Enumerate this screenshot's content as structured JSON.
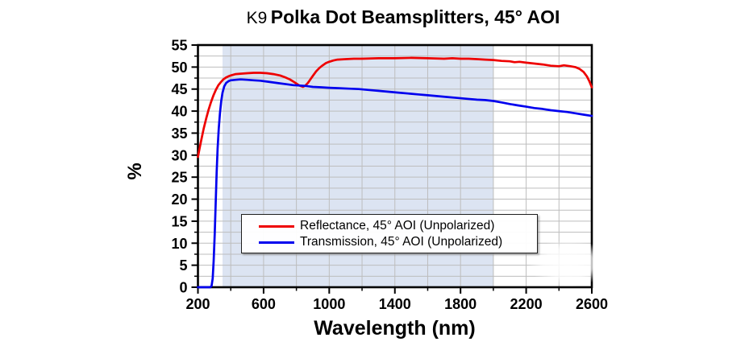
{
  "chart_data": {
    "type": "line",
    "title": "K9 Polka Dot Beamsplitters, 45° AOI",
    "title_prefix": "K9",
    "title_main": "Polka Dot Beamsplitters, 45° AOI",
    "xlabel": "Wavelength (nm)",
    "ylabel": "%",
    "xlim": [
      200,
      2600
    ],
    "ylim": [
      0,
      55
    ],
    "x_major_ticks": [
      200,
      600,
      1000,
      1400,
      1800,
      2200,
      2600
    ],
    "x_minor_step": 200,
    "y_major_step": 5,
    "y_minor_step": 2.5,
    "grid": true,
    "legend_position": "lower-center-inside",
    "highlight_band_nm": [
      350,
      2000
    ],
    "band_color": "#dce4f2",
    "grid_color": "#bdbdbd",
    "axis_color": "#000000",
    "series": [
      {
        "name": "Reflectance, 45° AOI (Unpolarized)",
        "color": "#ee0000",
        "points": [
          [
            200,
            29.6
          ],
          [
            210,
            31.5
          ],
          [
            220,
            33.4
          ],
          [
            235,
            36.0
          ],
          [
            250,
            38.3
          ],
          [
            265,
            40.3
          ],
          [
            280,
            42.1
          ],
          [
            295,
            43.6
          ],
          [
            310,
            44.9
          ],
          [
            325,
            45.9
          ],
          [
            340,
            46.6
          ],
          [
            355,
            47.2
          ],
          [
            370,
            47.6
          ],
          [
            385,
            47.9
          ],
          [
            400,
            48.1
          ],
          [
            430,
            48.4
          ],
          [
            460,
            48.5
          ],
          [
            500,
            48.6
          ],
          [
            540,
            48.7
          ],
          [
            580,
            48.7
          ],
          [
            620,
            48.6
          ],
          [
            660,
            48.4
          ],
          [
            700,
            48.1
          ],
          [
            730,
            47.7
          ],
          [
            760,
            47.2
          ],
          [
            790,
            46.5
          ],
          [
            810,
            46.0
          ],
          [
            825,
            45.7
          ],
          [
            840,
            45.5
          ],
          [
            855,
            45.8
          ],
          [
            870,
            46.4
          ],
          [
            885,
            47.2
          ],
          [
            900,
            48.0
          ],
          [
            920,
            49.0
          ],
          [
            940,
            49.8
          ],
          [
            960,
            50.4
          ],
          [
            980,
            50.9
          ],
          [
            1000,
            51.2
          ],
          [
            1025,
            51.5
          ],
          [
            1050,
            51.7
          ],
          [
            1100,
            51.8
          ],
          [
            1150,
            51.9
          ],
          [
            1200,
            51.9
          ],
          [
            1300,
            52.0
          ],
          [
            1400,
            52.0
          ],
          [
            1500,
            52.1
          ],
          [
            1600,
            52.0
          ],
          [
            1700,
            51.9
          ],
          [
            1750,
            52.0
          ],
          [
            1800,
            51.9
          ],
          [
            1850,
            51.9
          ],
          [
            1900,
            51.8
          ],
          [
            1950,
            51.7
          ],
          [
            2000,
            51.6
          ],
          [
            2050,
            51.4
          ],
          [
            2100,
            51.3
          ],
          [
            2130,
            51.1
          ],
          [
            2160,
            51.2
          ],
          [
            2200,
            51.0
          ],
          [
            2250,
            50.8
          ],
          [
            2300,
            50.6
          ],
          [
            2350,
            50.3
          ],
          [
            2400,
            50.2
          ],
          [
            2430,
            50.4
          ],
          [
            2470,
            50.2
          ],
          [
            2500,
            50.0
          ],
          [
            2525,
            49.6
          ],
          [
            2550,
            48.9
          ],
          [
            2570,
            47.9
          ],
          [
            2585,
            46.8
          ],
          [
            2600,
            45.4
          ]
        ]
      },
      {
        "name": "Transmission, 45° AOI (Unpolarized)",
        "color": "#0000ee",
        "points": [
          [
            200,
            0
          ],
          [
            275,
            0
          ],
          [
            283,
            0.3
          ],
          [
            290,
            2
          ],
          [
            296,
            6
          ],
          [
            302,
            12
          ],
          [
            308,
            19
          ],
          [
            314,
            26
          ],
          [
            320,
            31.5
          ],
          [
            327,
            36
          ],
          [
            334,
            39.5
          ],
          [
            342,
            42.3
          ],
          [
            350,
            44.2
          ],
          [
            360,
            45.6
          ],
          [
            372,
            46.4
          ],
          [
            386,
            46.8
          ],
          [
            400,
            47.0
          ],
          [
            430,
            47.1
          ],
          [
            460,
            47.2
          ],
          [
            500,
            47.1
          ],
          [
            540,
            47.0
          ],
          [
            580,
            46.9
          ],
          [
            620,
            46.7
          ],
          [
            660,
            46.5
          ],
          [
            700,
            46.3
          ],
          [
            740,
            46.1
          ],
          [
            780,
            45.9
          ],
          [
            820,
            45.8
          ],
          [
            860,
            45.7
          ],
          [
            900,
            45.5
          ],
          [
            950,
            45.4
          ],
          [
            1000,
            45.3
          ],
          [
            1060,
            45.2
          ],
          [
            1120,
            45.1
          ],
          [
            1180,
            45.0
          ],
          [
            1240,
            44.8
          ],
          [
            1300,
            44.6
          ],
          [
            1360,
            44.4
          ],
          [
            1420,
            44.2
          ],
          [
            1480,
            44.0
          ],
          [
            1540,
            43.8
          ],
          [
            1600,
            43.6
          ],
          [
            1660,
            43.4
          ],
          [
            1720,
            43.2
          ],
          [
            1780,
            43.0
          ],
          [
            1840,
            42.8
          ],
          [
            1900,
            42.6
          ],
          [
            1950,
            42.5
          ],
          [
            2000,
            42.3
          ],
          [
            2060,
            41.9
          ],
          [
            2100,
            41.6
          ],
          [
            2150,
            41.3
          ],
          [
            2200,
            41.0
          ],
          [
            2250,
            40.7
          ],
          [
            2300,
            40.5
          ],
          [
            2350,
            40.2
          ],
          [
            2400,
            40.0
          ],
          [
            2450,
            39.8
          ],
          [
            2500,
            39.5
          ],
          [
            2550,
            39.2
          ],
          [
            2600,
            38.9
          ]
        ]
      }
    ]
  }
}
